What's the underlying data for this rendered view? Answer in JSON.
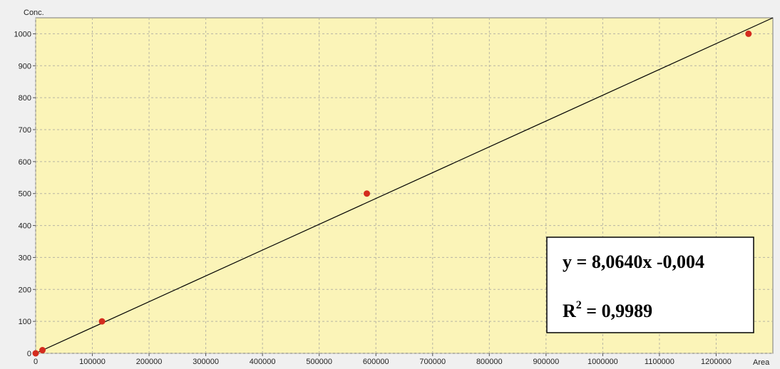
{
  "chart_data": {
    "type": "scatter",
    "xlabel": "Area",
    "ylabel": "Conc.",
    "xlim": [
      0,
      1300000
    ],
    "ylim": [
      0,
      1050
    ],
    "x_ticks": [
      "0",
      "100000",
      "200000",
      "300000",
      "400000",
      "500000",
      "600000",
      "700000",
      "800000",
      "900000",
      "1000000",
      "1100000",
      "1200000"
    ],
    "y_ticks": [
      "0",
      "100",
      "200",
      "300",
      "400",
      "500",
      "600",
      "700",
      "800",
      "900",
      "1000"
    ],
    "grid": true,
    "series": [
      {
        "points": [
          {
            "x": 0,
            "y": 0
          },
          {
            "x": 12000,
            "y": 10
          },
          {
            "x": 117000,
            "y": 100
          },
          {
            "x": 584000,
            "y": 500
          },
          {
            "x": 1257000,
            "y": 1000
          }
        ]
      }
    ],
    "trendline": {
      "x0": 0,
      "y0": 0,
      "x1": 1300000,
      "y1": 1050
    },
    "annotation": {
      "equation": "y = 8,0640x -0,004",
      "r2_label": "R",
      "r2_exp": "2",
      "r2_value": " = 0,9989"
    },
    "colors": {
      "plot_bg": "#fbf4b8",
      "grid": "#b7b4a3",
      "point": "#d42b1e",
      "line": "#000000"
    }
  }
}
